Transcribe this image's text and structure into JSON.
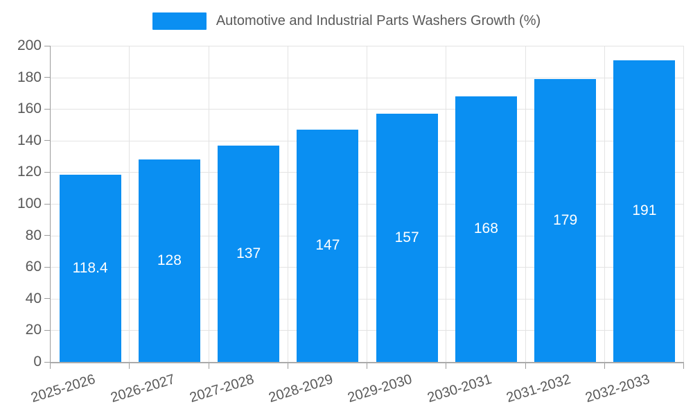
{
  "legend": {
    "label": "Automotive and Industrial Parts Washers Growth (%)",
    "swatch_color": "#0a8ff2"
  },
  "chart_data": {
    "type": "bar",
    "title": "Automotive and Industrial Parts Washers Growth (%)",
    "categories": [
      "2025-2026",
      "2026-2027",
      "2027-2028",
      "2028-2029",
      "2029-2030",
      "2030-2031",
      "2031-2032",
      "2032-2033"
    ],
    "values": [
      118.4,
      128,
      137,
      147,
      157,
      168,
      179,
      191
    ],
    "value_labels": [
      "118.4",
      "128",
      "137",
      "147",
      "157",
      "168",
      "179",
      "191"
    ],
    "xlabel": "",
    "ylabel": "",
    "ylim": [
      0,
      200
    ],
    "yticks": [
      0,
      20,
      40,
      60,
      80,
      100,
      120,
      140,
      160,
      180,
      200
    ],
    "grid": true,
    "legend_position": "top",
    "bar_color": "#0a8ff2",
    "value_label_color": "#ffffff",
    "grid_color": "#e3e3e3",
    "axis_color": "#9b9b9b",
    "text_color": "#595959",
    "x_label_rotation_deg": -17
  }
}
